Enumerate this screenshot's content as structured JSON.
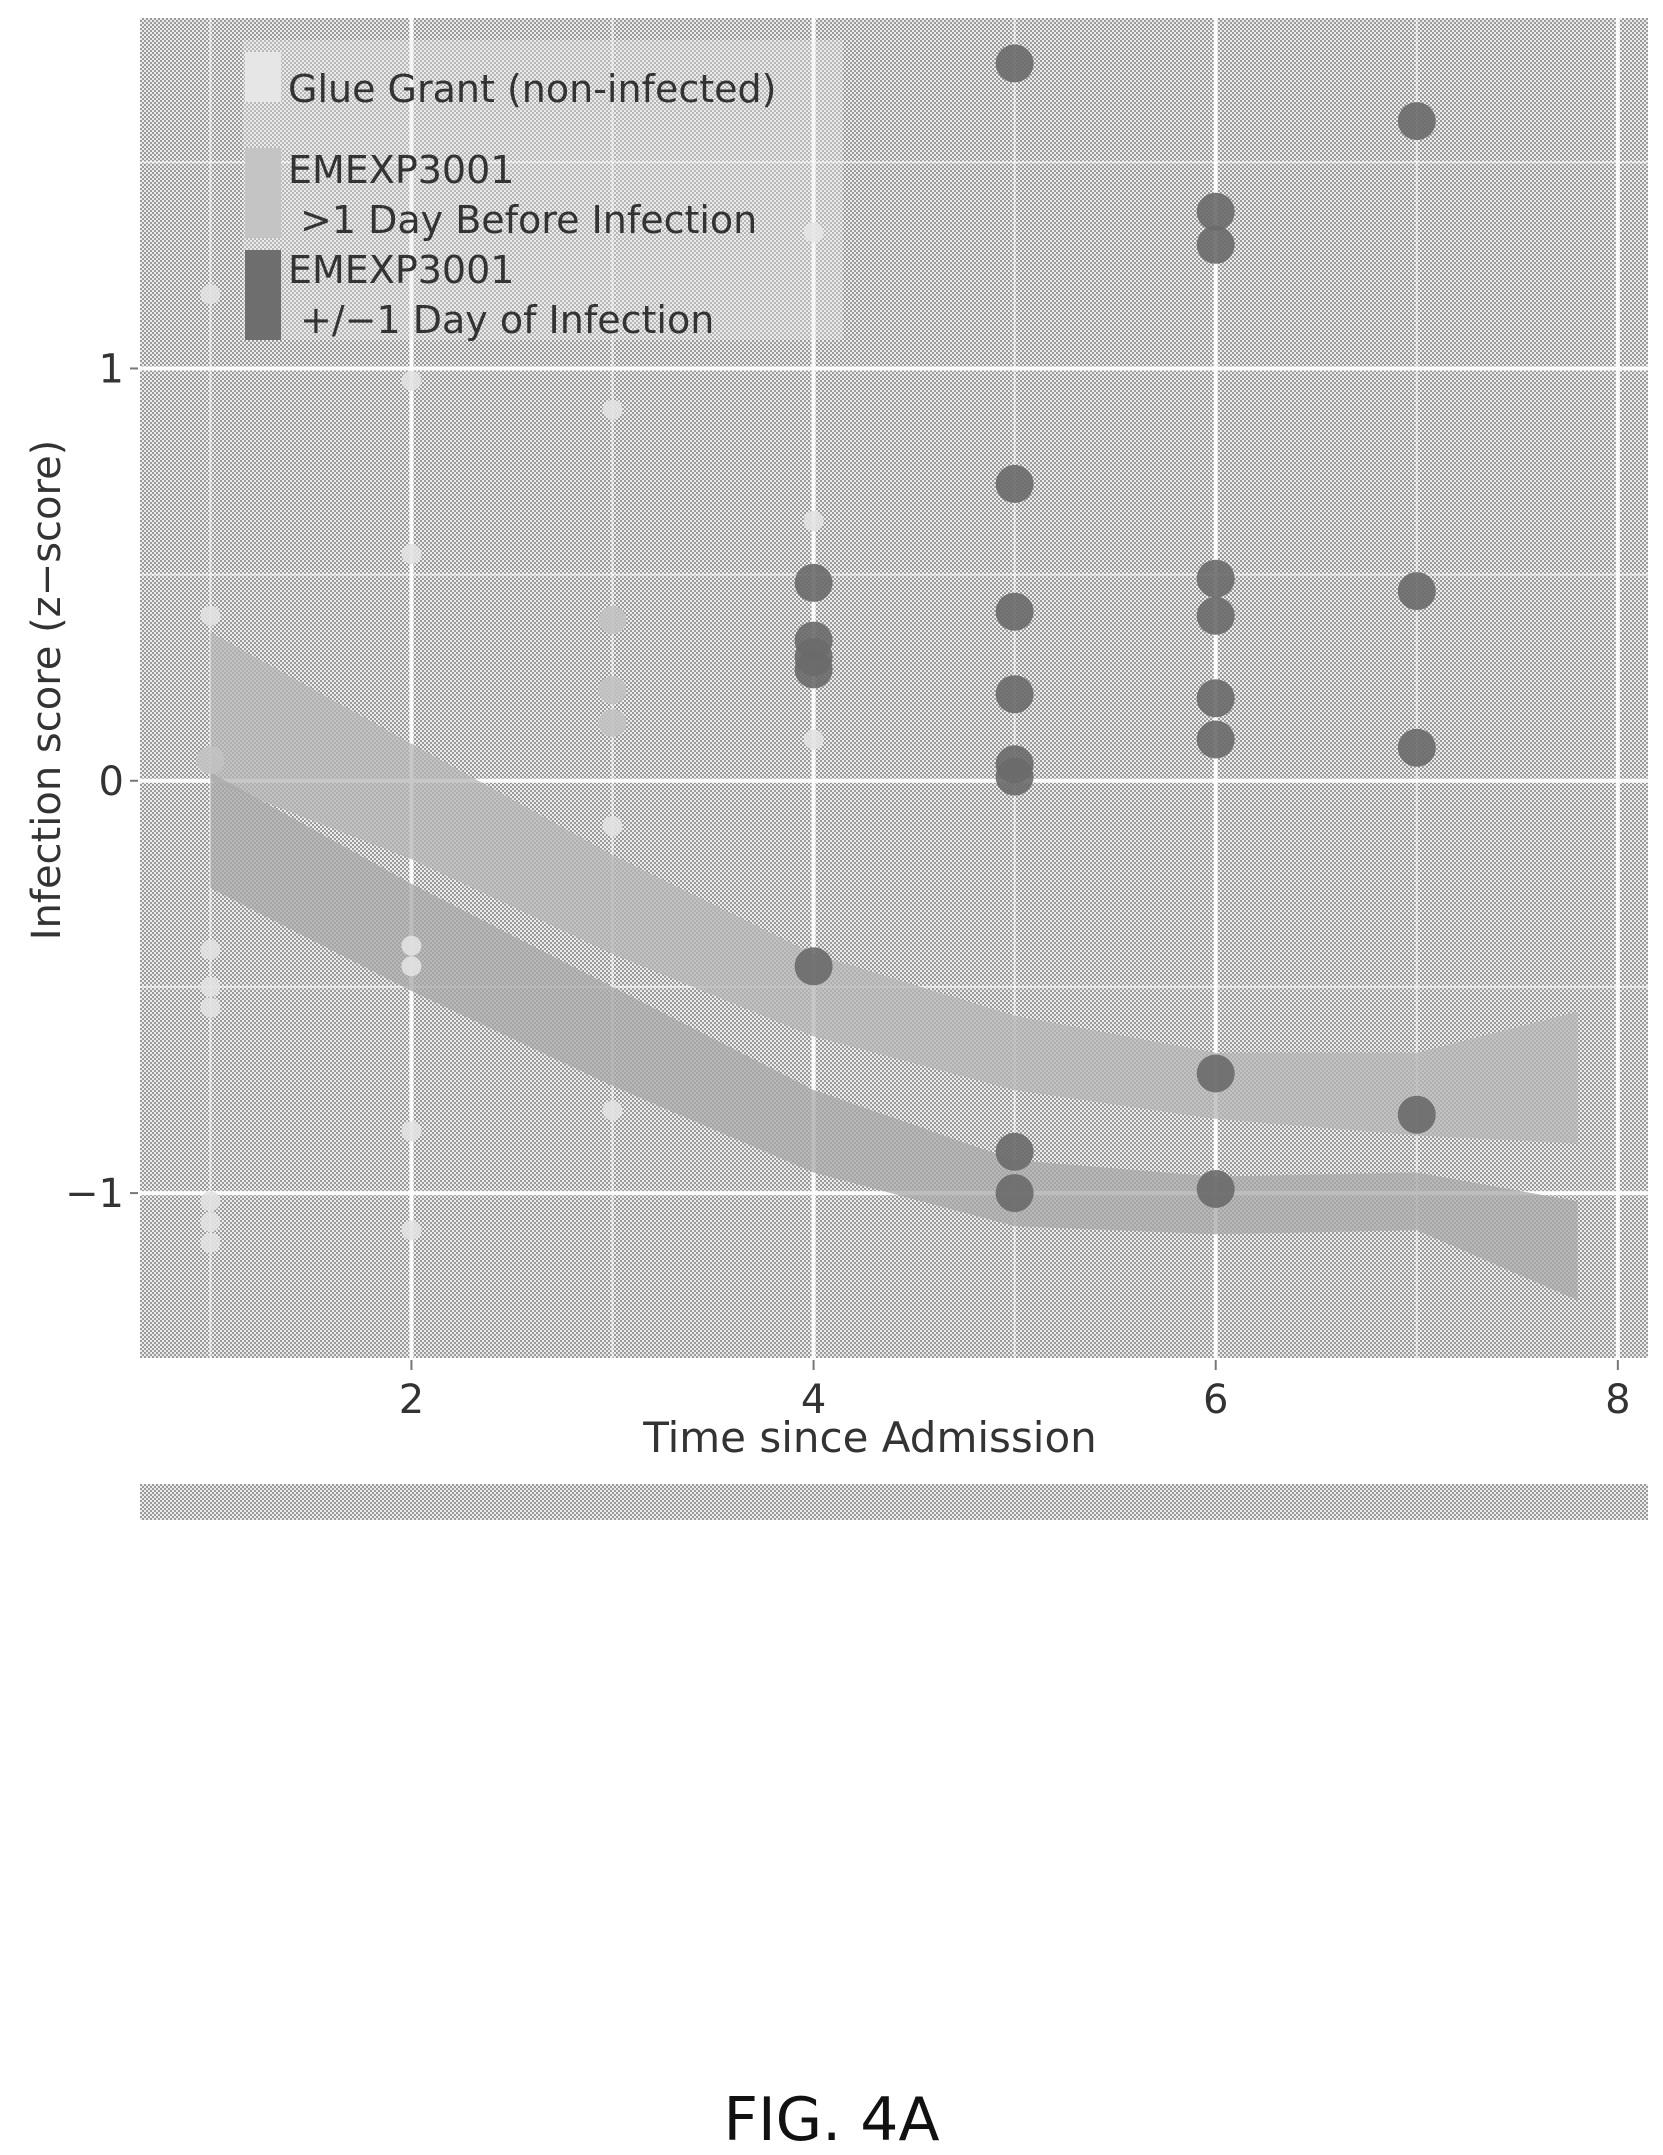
{
  "caption": "FIG. 4A",
  "chart_data": {
    "type": "scatter",
    "xlabel": "Time since Admission",
    "ylabel": "Infection score (z−score)",
    "xlim": [
      0.65,
      8.15
    ],
    "ylim": [
      -1.4,
      1.85
    ],
    "x_ticks": [
      2,
      4,
      6,
      8
    ],
    "x_tick_labels": [
      "2",
      "4",
      "6",
      "8"
    ],
    "y_ticks": [
      -1,
      0,
      1
    ],
    "y_tick_labels": [
      "−1",
      "0",
      "1"
    ],
    "grid": true,
    "legend_position": "top-left",
    "series": [
      {
        "name": "Glue Grant (non-infected)",
        "marker": "small",
        "color": "#e2e2e2",
        "points": [
          [
            1,
            1.18
          ],
          [
            1,
            0.4
          ],
          [
            1,
            -0.41
          ],
          [
            1,
            -0.5
          ],
          [
            1,
            -0.55
          ],
          [
            1,
            -1.02
          ],
          [
            1,
            -1.07
          ],
          [
            1,
            -1.12
          ],
          [
            2,
            0.97
          ],
          [
            2,
            0.55
          ],
          [
            2,
            -0.4
          ],
          [
            2,
            -0.45
          ],
          [
            2,
            -0.85
          ],
          [
            2,
            -1.09
          ],
          [
            3,
            0.9
          ],
          [
            3,
            -0.11
          ],
          [
            3,
            -0.8
          ],
          [
            4,
            1.33
          ],
          [
            4,
            0.63
          ],
          [
            4,
            0.1
          ]
        ]
      },
      {
        "name": "EMEXP3001\n>1 Day Before Infection",
        "marker": "medium",
        "color": "#c2c2c2",
        "points": [
          [
            1,
            0.05
          ],
          [
            3,
            0.39
          ],
          [
            3,
            0.22
          ],
          [
            3,
            0.14
          ]
        ]
      },
      {
        "name": "EMEXP3001\n+/−1 Day of Infection",
        "marker": "large",
        "color": "#6a6a6a",
        "points": [
          [
            4,
            0.48
          ],
          [
            4,
            0.34
          ],
          [
            4,
            0.3
          ],
          [
            4,
            0.27
          ],
          [
            4,
            -0.45
          ],
          [
            5,
            1.74
          ],
          [
            5,
            0.72
          ],
          [
            5,
            0.41
          ],
          [
            5,
            0.21
          ],
          [
            5,
            0.04
          ],
          [
            5,
            0.01
          ],
          [
            5,
            -0.9
          ],
          [
            5,
            -1.0
          ],
          [
            6,
            1.38
          ],
          [
            6,
            1.3
          ],
          [
            6,
            0.49
          ],
          [
            6,
            0.4
          ],
          [
            6,
            0.2
          ],
          [
            6,
            0.1
          ],
          [
            6,
            -0.71
          ],
          [
            6,
            -0.99
          ],
          [
            7,
            1.6
          ],
          [
            7,
            0.46
          ],
          [
            7,
            0.08
          ],
          [
            7,
            -0.81
          ]
        ]
      }
    ],
    "trend_bands": [
      {
        "name": "band-upper",
        "color": "#b5b5b5",
        "x": [
          1.0,
          2.0,
          3.0,
          4.0,
          5.0,
          6.0,
          7.0,
          7.8
        ],
        "mid": [
          0.18,
          -0.05,
          -0.3,
          -0.52,
          -0.66,
          -0.74,
          -0.76,
          -0.72
        ],
        "half": [
          0.18,
          0.14,
          0.12,
          0.1,
          0.09,
          0.08,
          0.1,
          0.16
        ]
      },
      {
        "name": "band-lower",
        "color": "#a8a8a8",
        "x": [
          1.0,
          2.0,
          3.0,
          4.0,
          5.0,
          6.0,
          7.0,
          7.8
        ],
        "mid": [
          -0.12,
          -0.38,
          -0.62,
          -0.85,
          -1.0,
          -1.03,
          -1.02,
          -1.14
        ],
        "half": [
          0.14,
          0.13,
          0.12,
          0.1,
          0.08,
          0.07,
          0.07,
          0.12
        ]
      }
    ]
  }
}
